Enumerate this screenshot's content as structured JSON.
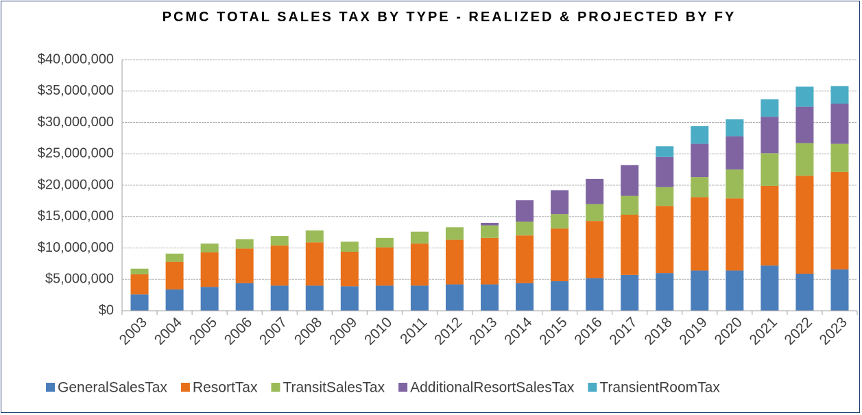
{
  "chart_data": {
    "type": "stacked_bar",
    "title": "PCMC TOTAL SALES TAX BY TYPE - REALIZED & PROJECTED BY FY",
    "categories": [
      "2003",
      "2004",
      "2005",
      "2006",
      "2007",
      "2008",
      "2009",
      "2010",
      "2011",
      "2012",
      "2013",
      "2014",
      "2015",
      "2016",
      "2017",
      "2018",
      "2019",
      "2020",
      "2021",
      "2022",
      "2023"
    ],
    "series": [
      {
        "name": "GeneralSalesTax",
        "color": "#4a7ebb",
        "values": [
          2600000,
          3400000,
          3800000,
          4400000,
          4000000,
          4000000,
          3900000,
          4000000,
          4000000,
          4200000,
          4200000,
          4400000,
          4700000,
          5200000,
          5700000,
          6000000,
          6400000,
          6400000,
          7200000,
          5900000,
          6600000
        ]
      },
      {
        "name": "ResortTax",
        "color": "#e8701a",
        "values": [
          3200000,
          4400000,
          5500000,
          5500000,
          6400000,
          6900000,
          5500000,
          6100000,
          6700000,
          7100000,
          7400000,
          7600000,
          8400000,
          9100000,
          9600000,
          10700000,
          11700000,
          11500000,
          12700000,
          15600000,
          15500000
        ]
      },
      {
        "name": "TransitSalesTax",
        "color": "#9bbb59",
        "values": [
          900000,
          1300000,
          1400000,
          1500000,
          1500000,
          1900000,
          1600000,
          1500000,
          1900000,
          2000000,
          2000000,
          2200000,
          2300000,
          2700000,
          3000000,
          3000000,
          3200000,
          4600000,
          5200000,
          5200000,
          4500000
        ]
      },
      {
        "name": "AdditionalResortSalesTax",
        "color": "#8064a2",
        "values": [
          null,
          null,
          null,
          null,
          null,
          null,
          null,
          null,
          null,
          null,
          400000,
          3400000,
          3800000,
          4000000,
          4900000,
          4800000,
          5300000,
          5300000,
          5800000,
          5800000,
          6400000
        ]
      },
      {
        "name": "TransientRoomTax",
        "color": "#4bacc6",
        "values": [
          null,
          null,
          null,
          null,
          null,
          null,
          null,
          null,
          null,
          null,
          null,
          null,
          null,
          null,
          null,
          1700000,
          2800000,
          2700000,
          2800000,
          3200000,
          2800000
        ]
      }
    ],
    "ylim": [
      0,
      40000000
    ],
    "yticks": [
      {
        "value": 0,
        "label": "$0"
      },
      {
        "value": 5000000,
        "label": "$5,000,000"
      },
      {
        "value": 10000000,
        "label": "$10,000,000"
      },
      {
        "value": 15000000,
        "label": "$15,000,000"
      },
      {
        "value": 20000000,
        "label": "$20,000,000"
      },
      {
        "value": 25000000,
        "label": "$25,000,000"
      },
      {
        "value": 30000000,
        "label": "$30,000,000"
      },
      {
        "value": 35000000,
        "label": "$35,000,000"
      },
      {
        "value": 40000000,
        "label": "$40,000,000"
      }
    ],
    "grid": true,
    "legend": "bottom"
  }
}
